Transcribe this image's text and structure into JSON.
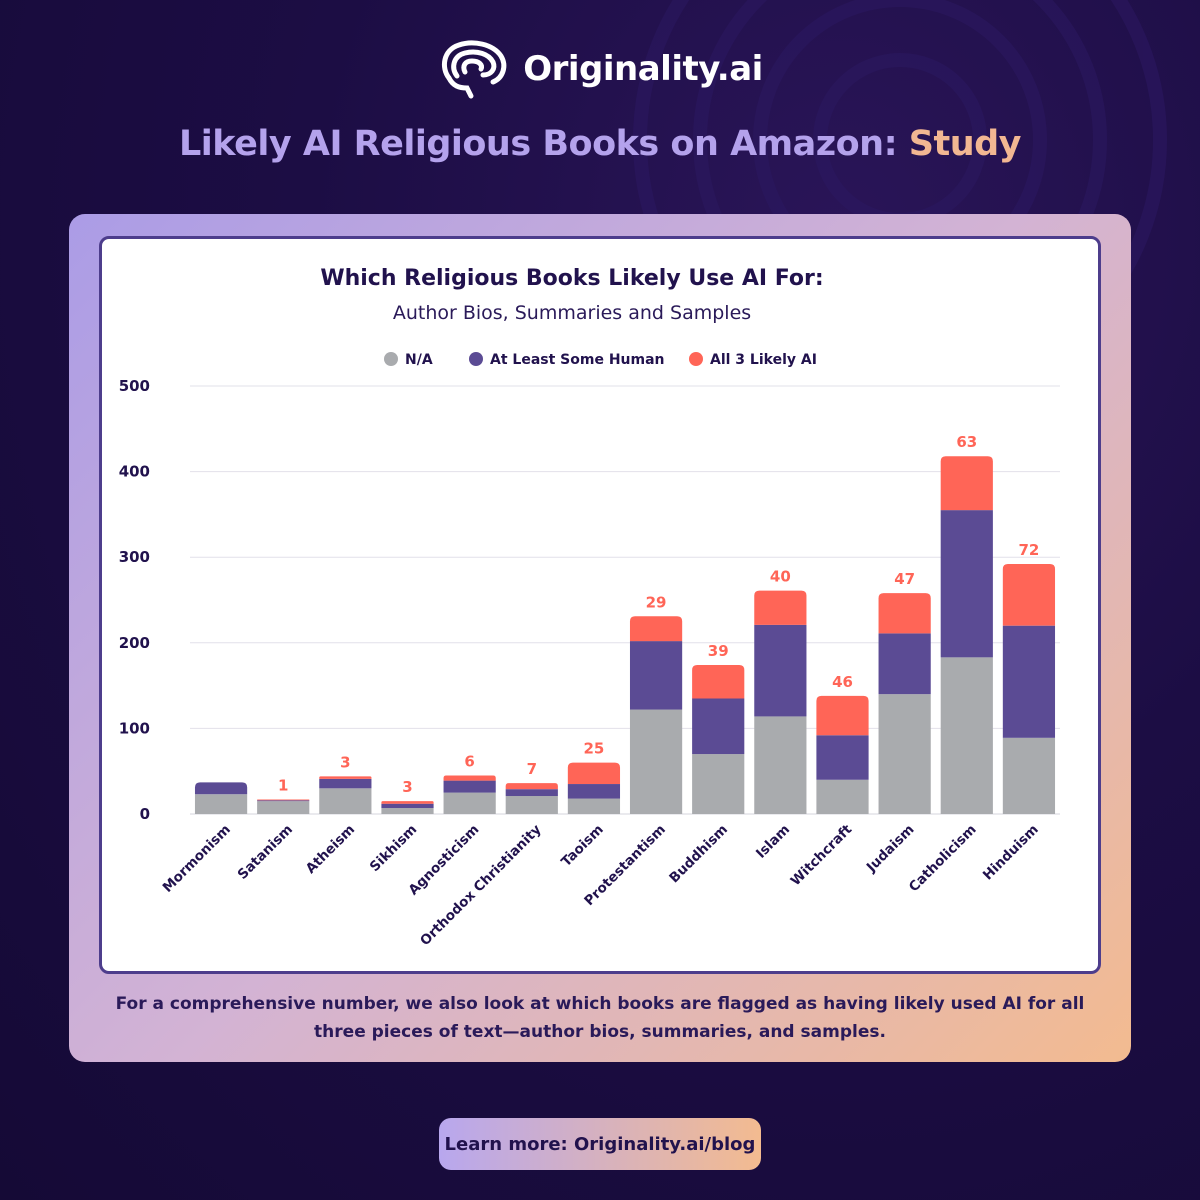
{
  "brand": {
    "name": "Originality.ai"
  },
  "headline": {
    "part1": "Likely AI Religious Books on Amazon:",
    "part2": "Study"
  },
  "footnote": "For a comprehensive number, we also look at which books are flagged as having likely used AI for all three pieces of text—author bios, summaries, and samples.",
  "cta": "Learn more: Originality.ai/blog",
  "colors": {
    "na": "#a9abae",
    "human": "#5b4b94",
    "ai": "#ff6557",
    "text": "#21124d"
  },
  "chart_data": {
    "type": "bar",
    "stacked": true,
    "title": "Which Religious Books Likely Use AI For:",
    "subtitle": "Author Bios, Summaries and Samples",
    "xlabel": "",
    "ylabel": "",
    "ylim": [
      0,
      500
    ],
    "yticks": [
      0,
      100,
      200,
      300,
      400,
      500
    ],
    "grid": true,
    "legend_position": "top",
    "categories": [
      "Mormonism",
      "Satanism",
      "Atheism",
      "Sikhism",
      "Agnosticism",
      "Orthodox Christianity",
      "Taoism",
      "Protestantism",
      "Buddhism",
      "Islam",
      "Witchcraft",
      "Judaism",
      "Catholicism",
      "Hinduism"
    ],
    "series": [
      {
        "name": "N/A",
        "values": [
          23,
          15,
          30,
          7,
          25,
          21,
          18,
          122,
          70,
          114,
          40,
          140,
          183,
          89
        ]
      },
      {
        "name": "At Least Some Human",
        "values": [
          14,
          1,
          11,
          5,
          14,
          8,
          17,
          80,
          65,
          107,
          52,
          71,
          172,
          131
        ]
      },
      {
        "name": "All 3 Likely AI",
        "values": [
          0,
          1,
          3,
          3,
          6,
          7,
          25,
          29,
          39,
          40,
          46,
          47,
          63,
          72
        ]
      }
    ],
    "data_labels": [
      "",
      "1",
      "3",
      "3",
      "6",
      "7",
      "25",
      "29",
      "39",
      "40",
      "46",
      "47",
      "63",
      "72"
    ]
  }
}
